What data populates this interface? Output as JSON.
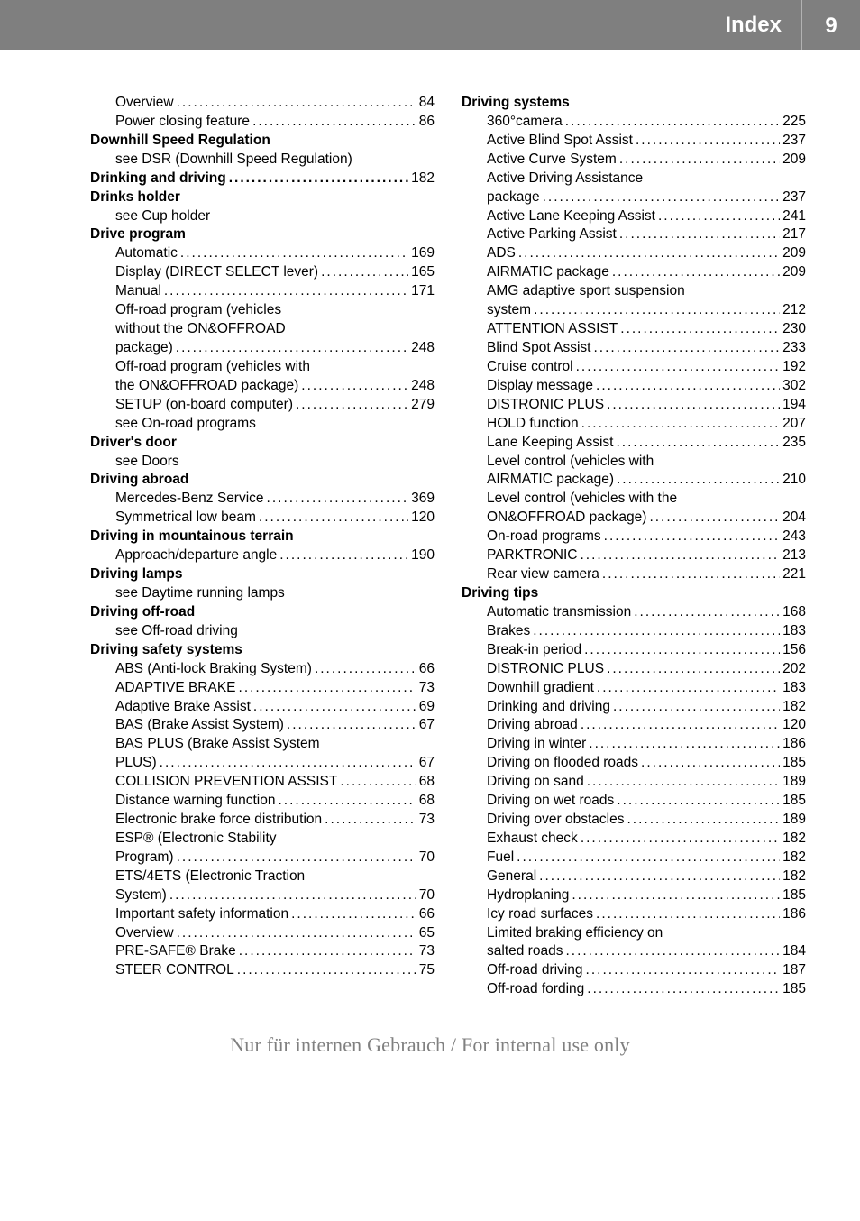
{
  "header": {
    "title": "Index",
    "page": "9"
  },
  "watermark": "Nur für internen Gebrauch / For internal use only",
  "left": [
    {
      "indent": 1,
      "label": "Overview",
      "page": "84"
    },
    {
      "indent": 1,
      "label": "Power closing feature",
      "page": "86"
    },
    {
      "indent": 0,
      "bold": true,
      "label": "Downhill Speed Regulation"
    },
    {
      "indent": 1,
      "label": "see DSR (Downhill Speed Regulation)"
    },
    {
      "indent": 0,
      "bold": true,
      "label": "Drinking and driving",
      "page": "182"
    },
    {
      "indent": 0,
      "bold": true,
      "label": "Drinks holder"
    },
    {
      "indent": 1,
      "label": "see Cup holder"
    },
    {
      "indent": 0,
      "bold": true,
      "label": "Drive program"
    },
    {
      "indent": 1,
      "label": "Automatic",
      "page": "169"
    },
    {
      "indent": 1,
      "label": "Display (DIRECT SELECT lever)",
      "page": "165"
    },
    {
      "indent": 1,
      "label": "Manual",
      "page": "171"
    },
    {
      "indent": 1,
      "label": "Off-road program (vehicles"
    },
    {
      "indent": 1,
      "wrap": true,
      "label": "without the ON&OFFROAD"
    },
    {
      "indent": 1,
      "wrap": true,
      "label": "package)",
      "page": "248"
    },
    {
      "indent": 1,
      "label": "Off-road program (vehicles with"
    },
    {
      "indent": 1,
      "wrap": true,
      "label": "the ON&OFFROAD package)",
      "page": "248"
    },
    {
      "indent": 1,
      "label": "SETUP (on-board computer)",
      "page": "279"
    },
    {
      "indent": 1,
      "label": "see On-road programs"
    },
    {
      "indent": 0,
      "bold": true,
      "label": "Driver's door"
    },
    {
      "indent": 1,
      "label": "see Doors"
    },
    {
      "indent": 0,
      "bold": true,
      "label": "Driving abroad"
    },
    {
      "indent": 1,
      "label": "Mercedes-Benz Service",
      "page": "369"
    },
    {
      "indent": 1,
      "label": "Symmetrical low beam",
      "page": "120"
    },
    {
      "indent": 0,
      "bold": true,
      "label": "Driving in mountainous terrain"
    },
    {
      "indent": 1,
      "label": "Approach/departure angle",
      "page": "190"
    },
    {
      "indent": 0,
      "bold": true,
      "label": "Driving lamps"
    },
    {
      "indent": 1,
      "label": "see Daytime running lamps"
    },
    {
      "indent": 0,
      "bold": true,
      "label": "Driving off-road"
    },
    {
      "indent": 1,
      "label": "see Off-road driving"
    },
    {
      "indent": 0,
      "bold": true,
      "label": "Driving safety systems"
    },
    {
      "indent": 1,
      "label": "ABS (Anti-lock Braking System)",
      "page": "66"
    },
    {
      "indent": 1,
      "label": "ADAPTIVE BRAKE",
      "page": "73"
    },
    {
      "indent": 1,
      "label": "Adaptive Brake Assist",
      "page": "69"
    },
    {
      "indent": 1,
      "label": "BAS (Brake Assist System)",
      "page": "67"
    },
    {
      "indent": 1,
      "label": "BAS PLUS (Brake Assist System"
    },
    {
      "indent": 1,
      "wrap": true,
      "label": "PLUS)",
      "page": "67"
    },
    {
      "indent": 1,
      "label": "COLLISION PREVENTION ASSIST",
      "page": "68"
    },
    {
      "indent": 1,
      "label": "Distance warning function",
      "page": "68"
    },
    {
      "indent": 1,
      "label": "Electronic brake force distribution",
      "page": "73"
    },
    {
      "indent": 1,
      "label": "ESP® (Electronic Stability"
    },
    {
      "indent": 1,
      "wrap": true,
      "label": "Program)",
      "page": "70"
    },
    {
      "indent": 1,
      "label": "ETS/4ETS (Electronic Traction"
    },
    {
      "indent": 1,
      "wrap": true,
      "label": "System)",
      "page": "70"
    },
    {
      "indent": 1,
      "label": "Important safety information",
      "page": "66"
    },
    {
      "indent": 1,
      "label": "Overview",
      "page": "65"
    },
    {
      "indent": 1,
      "label": "PRE-SAFE® Brake",
      "page": "73"
    },
    {
      "indent": 1,
      "label": "STEER CONTROL",
      "page": "75"
    }
  ],
  "right": [
    {
      "indent": 0,
      "bold": true,
      "label": "Driving systems"
    },
    {
      "indent": 1,
      "label": "360°camera",
      "page": "225"
    },
    {
      "indent": 1,
      "label": "Active Blind Spot Assist",
      "page": "237"
    },
    {
      "indent": 1,
      "label": "Active Curve System",
      "page": "209"
    },
    {
      "indent": 1,
      "label": "Active Driving Assistance"
    },
    {
      "indent": 1,
      "wrap": true,
      "label": "package",
      "page": "237"
    },
    {
      "indent": 1,
      "label": "Active Lane Keeping Assist",
      "page": "241"
    },
    {
      "indent": 1,
      "label": "Active Parking Assist",
      "page": "217"
    },
    {
      "indent": 1,
      "label": "ADS",
      "page": "209"
    },
    {
      "indent": 1,
      "label": "AIRMATIC package",
      "page": "209"
    },
    {
      "indent": 1,
      "label": "AMG adaptive sport suspension"
    },
    {
      "indent": 1,
      "wrap": true,
      "label": "system",
      "page": "212"
    },
    {
      "indent": 1,
      "label": "ATTENTION ASSIST",
      "page": "230"
    },
    {
      "indent": 1,
      "label": "Blind Spot Assist",
      "page": "233"
    },
    {
      "indent": 1,
      "label": "Cruise control",
      "page": "192"
    },
    {
      "indent": 1,
      "label": "Display message",
      "page": "302"
    },
    {
      "indent": 1,
      "label": "DISTRONIC PLUS",
      "page": "194"
    },
    {
      "indent": 1,
      "label": "HOLD function",
      "page": "207"
    },
    {
      "indent": 1,
      "label": "Lane Keeping Assist",
      "page": "235"
    },
    {
      "indent": 1,
      "label": "Level control (vehicles with"
    },
    {
      "indent": 1,
      "wrap": true,
      "label": "AIRMATIC package)",
      "page": "210"
    },
    {
      "indent": 1,
      "label": "Level control (vehicles with the"
    },
    {
      "indent": 1,
      "wrap": true,
      "label": "ON&OFFROAD package)",
      "page": "204"
    },
    {
      "indent": 1,
      "label": "On-road programs",
      "page": "243"
    },
    {
      "indent": 1,
      "label": "PARKTRONIC",
      "page": "213"
    },
    {
      "indent": 1,
      "label": "Rear view camera",
      "page": "221"
    },
    {
      "indent": 0,
      "bold": true,
      "label": "Driving tips"
    },
    {
      "indent": 1,
      "label": "Automatic transmission",
      "page": "168"
    },
    {
      "indent": 1,
      "label": "Brakes",
      "page": "183"
    },
    {
      "indent": 1,
      "label": "Break-in period",
      "page": "156"
    },
    {
      "indent": 1,
      "label": "DISTRONIC PLUS",
      "page": "202"
    },
    {
      "indent": 1,
      "label": "Downhill gradient",
      "page": "183"
    },
    {
      "indent": 1,
      "label": "Drinking and driving",
      "page": "182"
    },
    {
      "indent": 1,
      "label": "Driving abroad",
      "page": "120"
    },
    {
      "indent": 1,
      "label": "Driving in winter",
      "page": "186"
    },
    {
      "indent": 1,
      "label": "Driving on flooded roads",
      "page": "185"
    },
    {
      "indent": 1,
      "label": "Driving on sand",
      "page": "189"
    },
    {
      "indent": 1,
      "label": "Driving on wet roads",
      "page": "185"
    },
    {
      "indent": 1,
      "label": "Driving over obstacles",
      "page": "189"
    },
    {
      "indent": 1,
      "label": "Exhaust check",
      "page": "182"
    },
    {
      "indent": 1,
      "label": "Fuel",
      "page": "182"
    },
    {
      "indent": 1,
      "label": "General",
      "page": "182"
    },
    {
      "indent": 1,
      "label": "Hydroplaning",
      "page": "185"
    },
    {
      "indent": 1,
      "label": "Icy road surfaces",
      "page": "186"
    },
    {
      "indent": 1,
      "label": "Limited braking efficiency on"
    },
    {
      "indent": 1,
      "wrap": true,
      "label": "salted roads",
      "page": "184"
    },
    {
      "indent": 1,
      "label": "Off-road driving",
      "page": "187"
    },
    {
      "indent": 1,
      "label": "Off-road fording",
      "page": "185"
    }
  ]
}
